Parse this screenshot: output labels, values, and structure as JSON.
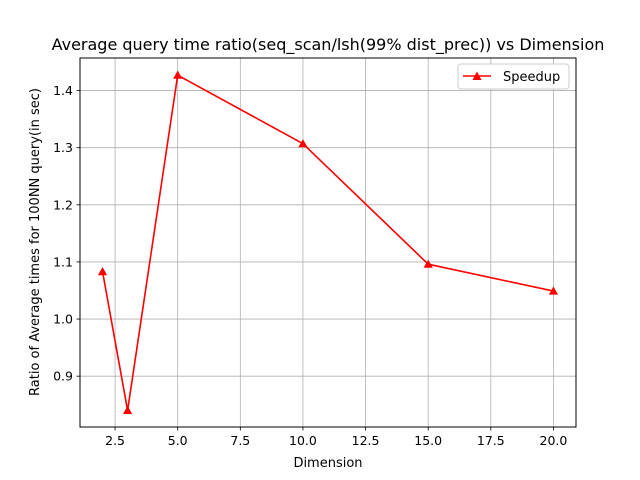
{
  "chart_data": {
    "type": "line",
    "title": "Average query time ratio(seq_scan/lsh(99% dist_prec)) vs Dimension",
    "xlabel": "Dimension",
    "ylabel": "Ratio of Average times for 100NN query(in sec)",
    "xlim": [
      1.1,
      20.9
    ],
    "ylim": [
      0.811,
      1.457
    ],
    "xticks": [
      2.5,
      5.0,
      7.5,
      10.0,
      12.5,
      15.0,
      17.5,
      20.0
    ],
    "xtick_labels": [
      "2.5",
      "5.0",
      "7.5",
      "10.0",
      "12.5",
      "15.0",
      "17.5",
      "20.0"
    ],
    "yticks": [
      0.9,
      1.0,
      1.1,
      1.2,
      1.3,
      1.4
    ],
    "ytick_labels": [
      "0.9",
      "1.0",
      "1.1",
      "1.2",
      "1.3",
      "1.4"
    ],
    "grid": true,
    "legend_position": "top-right",
    "series": [
      {
        "name": "Speedup",
        "color": "#ff0000",
        "marker": "triangle-up",
        "x": [
          2,
          3,
          5,
          10,
          15,
          20
        ],
        "y": [
          1.083,
          0.84,
          1.427,
          1.307,
          1.096,
          1.049
        ]
      }
    ]
  }
}
